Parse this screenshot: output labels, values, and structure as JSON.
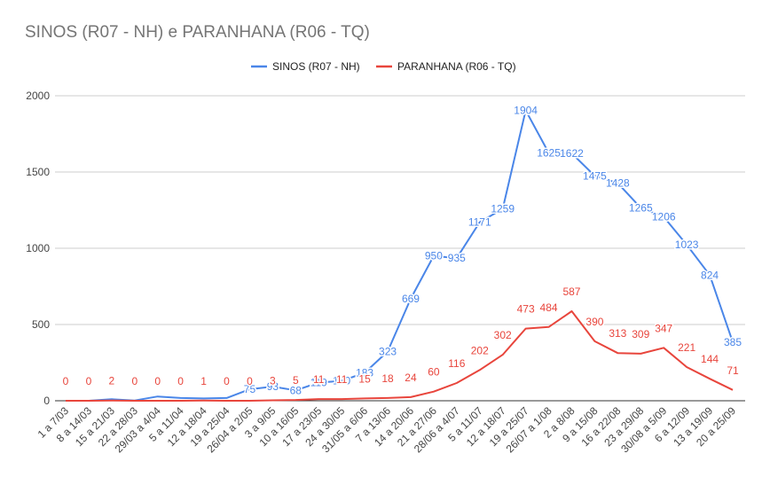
{
  "chart_data": {
    "type": "line",
    "title": "SINOS (R07 - NH) e PARANHANA (R06 - TQ)",
    "xlabel": "",
    "ylabel": "",
    "ylim": [
      0,
      2000
    ],
    "yticks": [
      0,
      500,
      1000,
      1500,
      2000
    ],
    "grid": true,
    "legend": "top-center",
    "categories": [
      "1 a 7/03",
      "8 a 14/03",
      "15 a 21/03",
      "22 a 28/03",
      "29/03 a 4/04",
      "5 a 11/04",
      "12 a 18/04",
      "19 a 25/04",
      "26/04 a 2/05",
      "3 a 9/05",
      "10 a 16/05",
      "17 a 23/05",
      "24 a 30/05",
      "31/05 a 6/06",
      "7 a 13/06",
      "14 a 20/06",
      "21 a 27/06",
      "28/06 a 4/07",
      "5 a 11/07",
      "12 a 18/07",
      "19 a 25/07",
      "26/07 a 1/08",
      "2 a 8/08",
      "9 a 15/08",
      "16 a 22/08",
      "23 a 29/08",
      "30/08 a 5/09",
      "6 a 12/09",
      "13 a 19/09",
      "20 a 25/09"
    ],
    "series": [
      {
        "name": "SINOS (R07 - NH)",
        "color": "#4a86e8",
        "values": [
          0,
          0,
          10,
          2,
          28,
          18,
          15,
          18,
          75,
          93,
          68,
          119,
          130,
          183,
          323,
          669,
          950,
          935,
          1171,
          1259,
          1904,
          1625,
          1622,
          1475,
          1428,
          1265,
          1206,
          1023,
          824,
          385
        ],
        "labels": [
          null,
          null,
          null,
          null,
          null,
          null,
          null,
          null,
          "75",
          "93",
          "68",
          "119",
          "130",
          "183",
          "323",
          "669",
          "950",
          "935",
          "1171",
          "1259",
          "1904",
          "1625",
          "1622",
          "1475",
          "1428",
          "1265",
          "1206",
          "1023",
          "824",
          "385"
        ]
      },
      {
        "name": "PARANHANA (R06 - TQ)",
        "color": "#e8453c",
        "values": [
          0,
          0,
          2,
          0,
          0,
          0,
          1,
          0,
          0,
          3,
          5,
          11,
          11,
          15,
          18,
          24,
          60,
          116,
          202,
          302,
          473,
          484,
          587,
          390,
          313,
          309,
          347,
          221,
          144,
          71
        ],
        "labels": [
          "0",
          "0",
          "2",
          "0",
          "0",
          "0",
          "1",
          "0",
          "0",
          "3",
          "5",
          "11",
          "11",
          "15",
          "18",
          "24",
          "60",
          "116",
          "202",
          "302",
          "473",
          "484",
          "587",
          "390",
          "313",
          "309",
          "347",
          "221",
          "144",
          "71"
        ]
      }
    ]
  }
}
